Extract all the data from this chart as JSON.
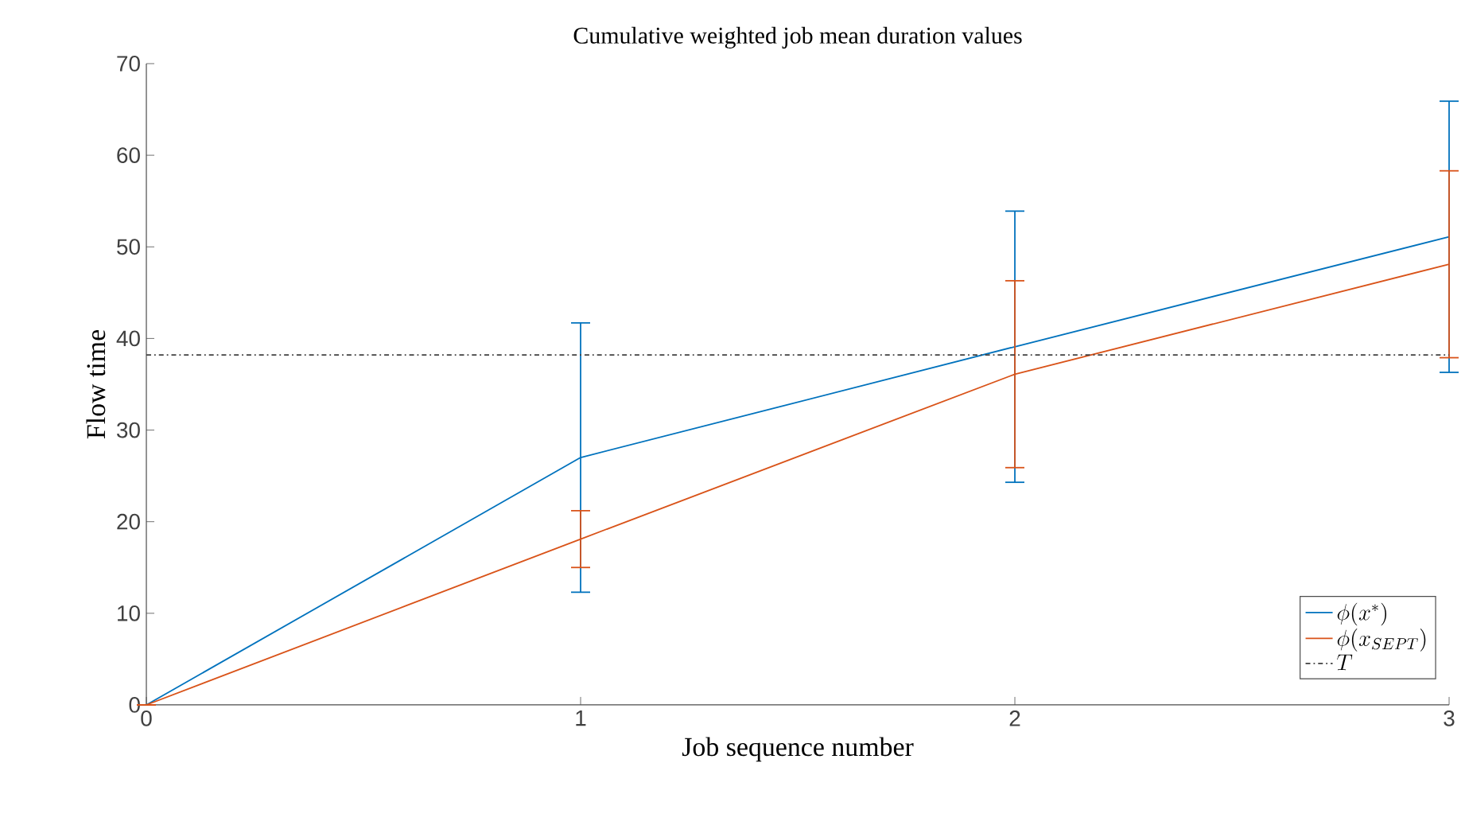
{
  "chart_data": {
    "type": "line",
    "title": "Cumulative weighted job mean duration values",
    "xlabel": "Job sequence number",
    "ylabel": "Flow time",
    "x": [
      0,
      1,
      2,
      3
    ],
    "xlim": [
      0,
      3
    ],
    "xticks": [
      0,
      1,
      2,
      3
    ],
    "ylim": [
      0,
      70
    ],
    "yticks": [
      0,
      10,
      20,
      30,
      40,
      50,
      60,
      70
    ],
    "series": [
      {
        "name": "\\phi(x^{*})",
        "color": "#0072bd",
        "values": [
          0,
          27.0,
          39.1,
          51.1
        ],
        "errors": [
          0,
          14.7,
          14.8,
          14.8
        ]
      },
      {
        "name": "\\phi(x_{SEPT})",
        "color": "#d95319",
        "values": [
          0,
          18.1,
          36.1,
          48.1
        ],
        "errors": [
          0,
          3.1,
          10.2,
          10.2
        ]
      }
    ],
    "ref_lines": [
      {
        "axis": "y",
        "value": 38.2,
        "label": "T",
        "color": "#404040",
        "line_style": "dashdot"
      }
    ],
    "legend": "bottom right",
    "grid": false,
    "marker": "none",
    "line_style": "solid"
  }
}
